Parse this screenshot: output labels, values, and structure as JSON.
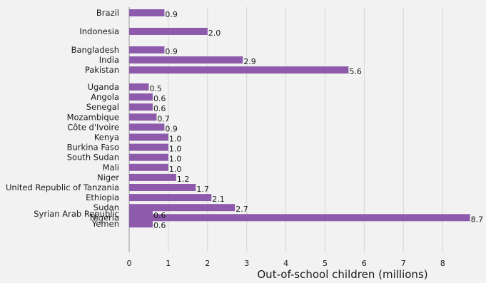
{
  "chart_data": {
    "type": "bar",
    "orientation": "horizontal",
    "xlabel": "Out-of-school children (millions)",
    "xlim": [
      0,
      8.8
    ],
    "xticks": [
      "0",
      "1",
      "2",
      "3",
      "4",
      "5",
      "6",
      "7",
      "8"
    ],
    "grid": true,
    "bar_color": "#8e5bac",
    "groups": [
      {
        "categories": [
          "Brazil"
        ],
        "values": [
          0.9
        ]
      },
      {
        "categories": [
          "Indonesia"
        ],
        "values": [
          2.0
        ]
      },
      {
        "categories": [
          "Bangladesh",
          "India",
          "Pakistan"
        ],
        "values": [
          0.9,
          2.9,
          5.6
        ]
      },
      {
        "categories": [
          "Uganda",
          "Angola",
          "Senegal",
          "Mozambique",
          "Côte d'Ivoire",
          "Kenya",
          "Burkina Faso",
          "South Sudan",
          "Mali",
          "Niger",
          "United Republic of Tanzania",
          "Ethiopia",
          "Sudan",
          "Nigeria"
        ],
        "values": [
          0.5,
          0.6,
          0.6,
          0.7,
          0.9,
          1.0,
          1.0,
          1.0,
          1.0,
          1.2,
          1.7,
          2.1,
          2.7,
          8.7
        ]
      },
      {
        "categories": [
          "Syrian Arab Republic",
          "Yemen"
        ],
        "values": [
          0.6,
          0.6
        ]
      }
    ],
    "value_labels": [
      [
        "0.9"
      ],
      [
        "2.0"
      ],
      [
        "0.9",
        "2.9",
        "5.6"
      ],
      [
        "0.5",
        "0.6",
        "0.6",
        "0.7",
        "0.9",
        "1.0",
        "1.0",
        "1.0",
        "1.0",
        "1.2",
        "1.7",
        "2.1",
        "2.7",
        "8.7"
      ],
      [
        "0.6",
        "0.6"
      ]
    ]
  }
}
